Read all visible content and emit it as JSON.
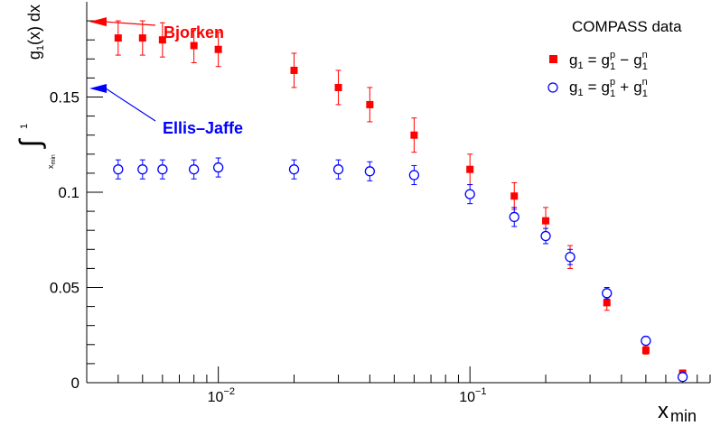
{
  "chart_data": {
    "type": "scatter",
    "title": "",
    "x_scale": "log",
    "xlim": [
      0.003,
      0.9
    ],
    "ylim": [
      0,
      0.2
    ],
    "grid": false,
    "legend_position": "top-right",
    "xlabel_main": "x",
    "xlabel_sub": "min",
    "ylabel": {
      "integral_upper": "1",
      "integral_lower": "x",
      "integral_lower_sub": "min",
      "integrand": "g",
      "integrand_sub": "1",
      "integrand_rest": "(x) dx"
    },
    "y_ticks": [
      {
        "value": 0,
        "label": "0"
      },
      {
        "value": 0.05,
        "label": "0.05"
      },
      {
        "value": 0.1,
        "label": "0.1"
      },
      {
        "value": 0.15,
        "label": "0.15"
      }
    ],
    "x_ticks": [
      {
        "value": 0.01,
        "base": "10",
        "exp": "−2"
      },
      {
        "value": 0.1,
        "base": "10",
        "exp": "−1"
      }
    ],
    "legend": {
      "title": "COMPASS data",
      "entries": [
        {
          "marker": "filled-square",
          "label_lhs": "g",
          "label_lhs_sub": "1",
          "op": "−"
        },
        {
          "marker": "open-circle",
          "label_lhs": "g",
          "label_lhs_sub": "1",
          "op": "+"
        }
      ],
      "g": "g",
      "sup_p": "p",
      "sup_n": "n",
      "sub_1": "1",
      "eq": "="
    },
    "annotations": [
      {
        "text": "Bjorken",
        "y": 0.1895,
        "color": "#ff0000"
      },
      {
        "text": "Ellis–Jaffe",
        "y": 0.1545,
        "color": "#0000ff"
      }
    ],
    "series": [
      {
        "marker": "filled-square",
        "color": "#ff0000",
        "x": [
          0.004,
          0.005,
          0.006,
          0.008,
          0.01,
          0.02,
          0.03,
          0.04,
          0.06,
          0.1,
          0.15,
          0.2,
          0.25,
          0.35,
          0.5,
          0.7
        ],
        "y": [
          0.181,
          0.181,
          0.18,
          0.177,
          0.175,
          0.164,
          0.155,
          0.146,
          0.13,
          0.112,
          0.098,
          0.085,
          0.066,
          0.042,
          0.017,
          0.005
        ],
        "y_err": [
          0.009,
          0.009,
          0.009,
          0.009,
          0.009,
          0.009,
          0.009,
          0.009,
          0.009,
          0.008,
          0.007,
          0.007,
          0.006,
          0.004,
          0.002,
          0.001
        ]
      },
      {
        "marker": "open-circle",
        "color": "#0000ff",
        "x": [
          0.004,
          0.005,
          0.006,
          0.008,
          0.01,
          0.02,
          0.03,
          0.04,
          0.06,
          0.1,
          0.15,
          0.2,
          0.25,
          0.35,
          0.5,
          0.7
        ],
        "y": [
          0.112,
          0.112,
          0.112,
          0.112,
          0.113,
          0.112,
          0.112,
          0.111,
          0.109,
          0.099,
          0.087,
          0.077,
          0.066,
          0.047,
          0.022,
          0.003
        ],
        "y_err": [
          0.005,
          0.005,
          0.005,
          0.005,
          0.005,
          0.005,
          0.005,
          0.005,
          0.005,
          0.005,
          0.005,
          0.004,
          0.004,
          0.003,
          0.002,
          0.001
        ]
      }
    ]
  }
}
